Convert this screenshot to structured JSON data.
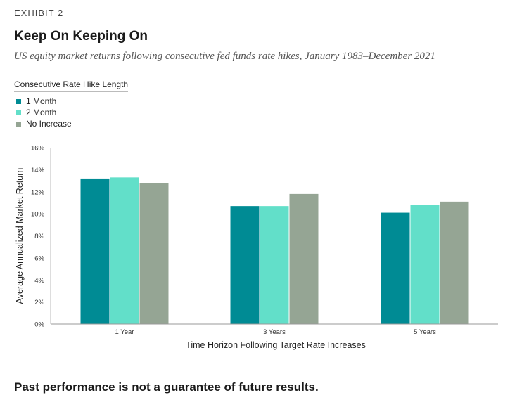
{
  "header": {
    "exhibit": "EXHIBIT 2",
    "title": "Keep On Keeping On",
    "subtitle": "US equity market returns following consecutive fed funds rate hikes, January 1983–December 2021"
  },
  "footer": {
    "note": "Past performance is not a guarantee of future results."
  },
  "colors": {
    "one_month": "#008b94",
    "two_month": "#62dfc9",
    "no_increase": "#95a594"
  },
  "chart_data": {
    "type": "bar",
    "legend_title": "Consecutive Rate Hike Length",
    "legend_placement": "top-left",
    "categories": [
      "1 Year",
      "3 Years",
      "5 Years"
    ],
    "series": [
      {
        "name": "1 Month",
        "values": [
          13.2,
          10.7,
          10.1
        ]
      },
      {
        "name": "2 Month",
        "values": [
          13.3,
          10.7,
          10.8
        ]
      },
      {
        "name": "No Increase",
        "values": [
          12.8,
          11.8,
          11.1
        ]
      }
    ],
    "xlabel": "Time Horizon Following Target Rate Increases",
    "ylabel": "Average Annualized Market Return",
    "ylim": [
      0,
      16
    ],
    "yticks": [
      "0%",
      "2%",
      "4%",
      "6%",
      "8%",
      "10%",
      "12%",
      "14%",
      "16%"
    ],
    "grid": false
  }
}
